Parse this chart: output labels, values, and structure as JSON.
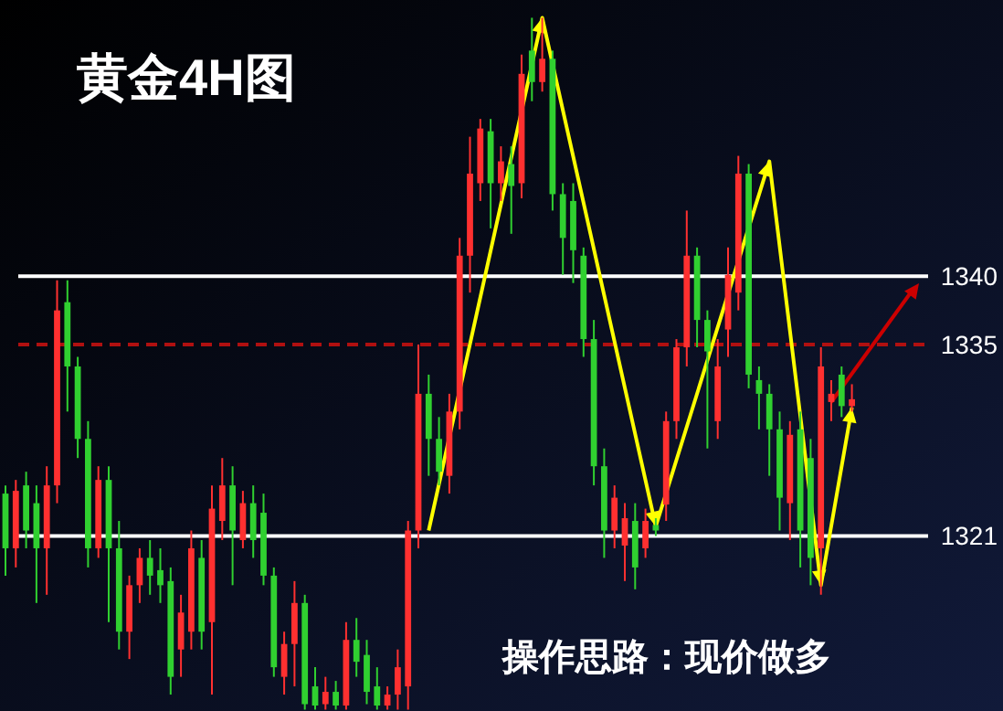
{
  "chart_data": {
    "type": "candlestick",
    "title": "黄金4H图",
    "annotations": [
      "操作思路：现价做多"
    ],
    "categories": [
      null,
      null,
      null,
      null,
      null,
      null,
      null,
      null,
      null,
      null,
      null,
      null,
      null,
      null,
      null,
      null,
      null,
      null,
      null,
      null,
      null,
      null,
      null,
      null,
      null,
      null,
      null,
      null,
      null,
      null,
      null,
      null,
      null,
      null,
      null,
      null,
      null,
      null,
      null,
      null,
      null,
      null,
      null,
      null,
      null,
      null,
      null,
      null,
      null,
      null,
      null,
      null,
      null,
      null,
      null,
      null,
      null,
      null,
      null,
      null,
      null,
      null,
      null,
      null,
      null,
      null,
      null,
      null,
      null,
      null,
      null,
      null,
      null,
      null,
      null,
      null,
      null,
      null,
      null,
      null,
      null,
      null,
      null
    ],
    "ohlc": [
      [
        1324.1,
        1324.7,
        1318.1,
        1320.1
      ],
      [
        1320.1,
        1325.1,
        1318.7,
        1324.3
      ],
      [
        1324.7,
        1325.7,
        1320.1,
        1321.4
      ],
      [
        1323.4,
        1324.7,
        1316.1,
        1320.1
      ],
      [
        1320.1,
        1326.1,
        1316.7,
        1324.7
      ],
      [
        1324.7,
        1339.7,
        1323.4,
        1337.5
      ],
      [
        1338.1,
        1339.7,
        1330.1,
        1333.4
      ],
      [
        1333.4,
        1334.1,
        1326.7,
        1328.1
      ],
      [
        1328.1,
        1329.4,
        1318.7,
        1320.1
      ],
      [
        1320.1,
        1326.1,
        1319.4,
        1325.1
      ],
      [
        1325.1,
        1326.1,
        1314.7,
        1320.1
      ],
      [
        1320.1,
        1322.1,
        1312.7,
        1314.0
      ],
      [
        1314.0,
        1318.1,
        1312.0,
        1317.4
      ],
      [
        1317.4,
        1320.1,
        1316.1,
        1319.4
      ],
      [
        1319.4,
        1320.7,
        1316.7,
        1318.1
      ],
      [
        1318.5,
        1320.1,
        1316.1,
        1317.4
      ],
      [
        1317.7,
        1318.7,
        1309.4,
        1310.7
      ],
      [
        1312.7,
        1316.7,
        1310.7,
        1315.4
      ],
      [
        1314.0,
        1321.4,
        1312.7,
        1320.1
      ],
      [
        1319.4,
        1320.7,
        1312.7,
        1314.0
      ],
      [
        1314.7,
        1324.7,
        1309.4,
        1323.0
      ],
      [
        1322.1,
        1326.7,
        1320.7,
        1324.7
      ],
      [
        1324.7,
        1326.1,
        1317.4,
        1321.4
      ],
      [
        1320.7,
        1324.3,
        1320.1,
        1323.4
      ],
      [
        1323.4,
        1324.7,
        1319.4,
        1320.7
      ],
      [
        1322.7,
        1324.1,
        1317.4,
        1318.1
      ],
      [
        1318.1,
        1318.7,
        1310.7,
        1311.4
      ],
      [
        1310.7,
        1314.0,
        1309.4,
        1313.1
      ],
      [
        1313.1,
        1317.7,
        1310.0,
        1316.1
      ],
      [
        1316.1,
        1316.7,
        1308.3,
        1308.7
      ],
      [
        1310.0,
        1311.4,
        1308.3,
        1308.6
      ],
      [
        1308.7,
        1310.7,
        1308.3,
        1309.6
      ],
      [
        1309.6,
        1310.4,
        1308.3,
        1308.6
      ],
      [
        1308.6,
        1314.7,
        1308.3,
        1313.4
      ],
      [
        1313.4,
        1315.0,
        1310.7,
        1311.8
      ],
      [
        1312.3,
        1313.4,
        1308.7,
        1309.6
      ],
      [
        1310.0,
        1311.4,
        1308.3,
        1308.6
      ],
      [
        1308.6,
        1310.0,
        1308.3,
        1309.4
      ],
      [
        1309.4,
        1312.7,
        1308.3,
        1311.4
      ],
      [
        1310.0,
        1322.1,
        1308.3,
        1321.4
      ],
      [
        1321.4,
        1335.0,
        1320.1,
        1331.4
      ],
      [
        1331.4,
        1332.8,
        1325.4,
        1328.1
      ],
      [
        1328.1,
        1329.7,
        1324.7,
        1325.7
      ],
      [
        1325.4,
        1331.4,
        1324.1,
        1330.1
      ],
      [
        1330.1,
        1342.8,
        1328.8,
        1341.5
      ],
      [
        1341.5,
        1350.2,
        1338.8,
        1347.5
      ],
      [
        1346.8,
        1351.5,
        1345.5,
        1350.8
      ],
      [
        1350.6,
        1351.5,
        1343.5,
        1346.8
      ],
      [
        1346.8,
        1349.5,
        1345.5,
        1348.4
      ],
      [
        1348.2,
        1349.5,
        1343.1,
        1346.6
      ],
      [
        1346.8,
        1356.2,
        1345.7,
        1354.8
      ],
      [
        1356.5,
        1358.9,
        1352.8,
        1354.2
      ],
      [
        1354.2,
        1358.9,
        1353.5,
        1355.9
      ],
      [
        1355.9,
        1356.5,
        1344.8,
        1346.0
      ],
      [
        1346.0,
        1346.8,
        1340.1,
        1342.8
      ],
      [
        1345.5,
        1346.8,
        1339.5,
        1341.9
      ],
      [
        1341.5,
        1342.1,
        1334.1,
        1335.4
      ],
      [
        1335.4,
        1336.8,
        1324.7,
        1326.1
      ],
      [
        1326.1,
        1327.4,
        1319.4,
        1321.4
      ],
      [
        1321.4,
        1324.7,
        1320.1,
        1323.8
      ],
      [
        1320.3,
        1323.4,
        1317.7,
        1322.3
      ],
      [
        1322.1,
        1323.4,
        1317.1,
        1318.7
      ],
      [
        1320.1,
        1323.0,
        1319.4,
        1322.1
      ],
      [
        1321.8,
        1322.3,
        1321.0,
        1321.4
      ],
      [
        1323.3,
        1330.1,
        1322.1,
        1329.4
      ],
      [
        1329.4,
        1335.4,
        1328.1,
        1334.8
      ],
      [
        1334.8,
        1344.8,
        1333.4,
        1341.5
      ],
      [
        1341.5,
        1342.1,
        1334.8,
        1336.8
      ],
      [
        1336.8,
        1337.5,
        1327.4,
        1334.5
      ],
      [
        1329.4,
        1335.4,
        1328.1,
        1333.4
      ],
      [
        1336.1,
        1342.1,
        1334.1,
        1340.1
      ],
      [
        1338.8,
        1348.8,
        1337.5,
        1347.5
      ],
      [
        1347.5,
        1348.2,
        1331.8,
        1332.8
      ],
      [
        1332.4,
        1333.4,
        1328.8,
        1331.4
      ],
      [
        1331.4,
        1332.1,
        1325.4,
        1328.8
      ],
      [
        1328.8,
        1330.1,
        1321.4,
        1323.8
      ],
      [
        1323.4,
        1329.4,
        1320.7,
        1328.4
      ],
      [
        1328.8,
        1330.1,
        1318.7,
        1321.4
      ],
      [
        1326.7,
        1328.1,
        1317.4,
        1319.4
      ],
      [
        1320.1,
        1334.8,
        1316.7,
        1333.4
      ],
      [
        1330.8,
        1332.4,
        1329.4,
        1331.4
      ],
      [
        1332.8,
        1333.4,
        1329.7,
        1330.5
      ],
      [
        1330.5,
        1332.1,
        1330.1,
        1331.0
      ]
    ],
    "colors": [
      "#30d030",
      "#ff3030",
      "#30d030",
      "#30d030",
      "#ff3030",
      "#ff3030",
      "#30d030",
      "#30d030",
      "#30d030",
      "#ff3030",
      "#30d030",
      "#30d030",
      "#ff3030",
      "#ff3030",
      "#30d030",
      "#30d030",
      "#30d030",
      "#ff3030",
      "#ff3030",
      "#30d030",
      "#ff3030",
      "#ff3030",
      "#30d030",
      "#ff3030",
      "#30d030",
      "#30d030",
      "#30d030",
      "#ff3030",
      "#ff3030",
      "#30d030",
      "#30d030",
      "#ff3030",
      "#30d030",
      "#ff3030",
      "#30d030",
      "#30d030",
      "#30d030",
      "#ff3030",
      "#ff3030",
      "#ff3030",
      "#ff3030",
      "#30d030",
      "#30d030",
      "#ff3030",
      "#ff3030",
      "#ff3030",
      "#ff3030",
      "#30d030",
      "#ff3030",
      "#30d030",
      "#ff3030",
      "#30d030",
      "#ff3030",
      "#30d030",
      "#30d030",
      "#30d030",
      "#30d030",
      "#30d030",
      "#30d030",
      "#ff3030",
      "#ff3030",
      "#30d030",
      "#ff3030",
      "#30d030",
      "#ff3030",
      "#ff3030",
      "#ff3030",
      "#30d030",
      "#30d030",
      "#ff3030",
      "#ff3030",
      "#ff3030",
      "#30d030",
      "#30d030",
      "#30d030",
      "#30d030",
      "#ff3030",
      "#30d030",
      "#30d030",
      "#ff3030",
      "#ff3030",
      "#30d030",
      "#ff3030"
    ],
    "series": [
      {
        "type": "line",
        "color": "#ffff00",
        "values": [
          null,
          null,
          null,
          null,
          null,
          null,
          null,
          null,
          null,
          null,
          null,
          null,
          null,
          null,
          null,
          null,
          null,
          null,
          null,
          null,
          null,
          null,
          null,
          null,
          null,
          null,
          null,
          null,
          null,
          null,
          null,
          null,
          null,
          null,
          null,
          null,
          null,
          null,
          null,
          null,
          null,
          1321.4,
          null,
          null,
          null,
          null,
          null,
          null,
          null,
          null,
          null,
          null,
          1358.9,
          null,
          null,
          null,
          null,
          null,
          null,
          null,
          null,
          null,
          null,
          1321.7,
          null,
          null,
          null,
          null,
          null,
          null,
          null,
          null,
          null,
          null,
          1348.4,
          null,
          null,
          null,
          null,
          1317.4,
          null,
          null,
          1330.4
        ]
      }
    ],
    "ref_lines": [
      {
        "axis": "y",
        "value": 1340,
        "color": "#ffffff",
        "line_style": "solid"
      },
      {
        "axis": "y",
        "value": 1335,
        "color": "#b01010",
        "line_style": "dashed"
      },
      {
        "axis": "y",
        "value": 1321,
        "color": "#ffffff",
        "line_style": "solid"
      }
    ],
    "ylim": [
      1308.2,
      1360.2
    ],
    "yticks": [
      1340,
      1335,
      1321
    ]
  }
}
